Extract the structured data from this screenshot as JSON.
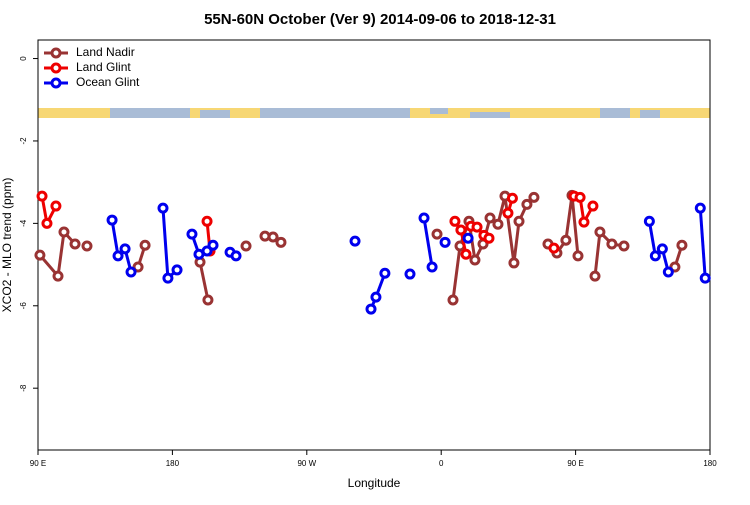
{
  "chart_data": {
    "type": "line",
    "title": "55N-60N October (Ver 9)   2014-09-06 to 2018-12-31",
    "x_label": "Longitude",
    "y_label": "XCO2 - MLO trend (ppm)",
    "xlim": [
      90,
      540
    ],
    "xticks": [
      {
        "value": 90,
        "label": "90 E"
      },
      {
        "value": 180,
        "label": "180"
      },
      {
        "value": 270,
        "label": "90 W"
      },
      {
        "value": 360,
        "label": "0"
      },
      {
        "value": 450,
        "label": "90 E"
      },
      {
        "value": 540,
        "label": "180"
      }
    ],
    "ylim": [
      -9.5,
      0.45
    ],
    "yticks": [
      0,
      -2,
      -4,
      -6,
      -8
    ],
    "legend": "top-left",
    "series": [
      {
        "name": "Land Nadir",
        "color": "#993333",
        "x": [
          91.3,
          103.4,
          107.4,
          114.8,
          null,
          122.8,
          null,
          157,
          161.7,
          null,
          198.5,
          203.8,
          null,
          229.3,
          null,
          242,
          247.4,
          252.7,
          null,
          357.2,
          null,
          367.9,
          372.6,
          378.6,
          382.6,
          388,
          392.7,
          398,
          402.7,
          408.7,
          412.1,
          417.4,
          422.1,
          null,
          431.5,
          437.5,
          443.5,
          447.6,
          451.6,
          null,
          463,
          466.3,
          474.3,
          482.4,
          null,
          516.5,
          521.2
        ],
        "values": [
          -4.77,
          -5.28,
          -4.21,
          -4.5,
          null,
          -4.55,
          null,
          -5.06,
          -4.53,
          null,
          -4.94,
          -5.86,
          null,
          -4.55,
          null,
          -4.31,
          -4.33,
          -4.46,
          null,
          -4.26,
          null,
          -5.86,
          -4.55,
          -3.95,
          -4.89,
          -4.5,
          -3.87,
          -4.02,
          -3.34,
          -4.96,
          -3.95,
          -3.54,
          -3.37,
          null,
          -4.5,
          -4.72,
          -4.41,
          -3.32,
          -4.79,
          null,
          -5.28,
          -4.21,
          -4.5,
          -4.55,
          null,
          -5.06,
          -4.53
        ]
      },
      {
        "name": "Land Glint",
        "color": "#ee0000",
        "x": [
          92.7,
          96,
          102,
          null,
          203.2,
          205.2,
          null,
          369.2,
          373.2,
          376.6,
          null,
          379.9,
          384,
          388.6,
          392,
          null,
          404.7,
          407.7,
          null,
          435.5,
          null,
          449,
          453,
          455.6,
          461.6
        ],
        "values": [
          -3.34,
          -4.0,
          -3.58,
          null,
          -3.95,
          -4.67,
          null,
          -3.95,
          -4.16,
          -4.75,
          null,
          -4.07,
          -4.09,
          -4.29,
          -4.36,
          null,
          -3.75,
          -3.39,
          null,
          -4.6,
          null,
          -3.34,
          -3.37,
          -3.97,
          -3.58
        ]
      },
      {
        "name": "Ocean Glint",
        "color": "#0000ee",
        "x": [
          139.6,
          143.6,
          148.3,
          152.3,
          null,
          173.7,
          177,
          183.1,
          null,
          193.1,
          197.8,
          203.2,
          207.2,
          null,
          218.6,
          222.6,
          null,
          302.3,
          null,
          313,
          316.3,
          322.3,
          null,
          339.1,
          null,
          348.5,
          353.9,
          null,
          362.6,
          null,
          378,
          null,
          499.4,
          503.4,
          508.1,
          512.1,
          null,
          533.5,
          536.8
        ],
        "values": [
          -3.92,
          -4.79,
          -4.62,
          -5.18,
          null,
          -3.63,
          -5.33,
          -5.13,
          null,
          -4.26,
          -4.75,
          -4.67,
          -4.53,
          null,
          -4.7,
          -4.79,
          null,
          -4.43,
          null,
          -6.08,
          -5.79,
          -5.21,
          null,
          -5.23,
          null,
          -3.87,
          -5.06,
          null,
          -4.46,
          null,
          -4.36,
          null,
          -3.95,
          -4.79,
          -4.62,
          -5.18,
          null,
          -3.63,
          -5.33
        ]
      }
    ]
  }
}
